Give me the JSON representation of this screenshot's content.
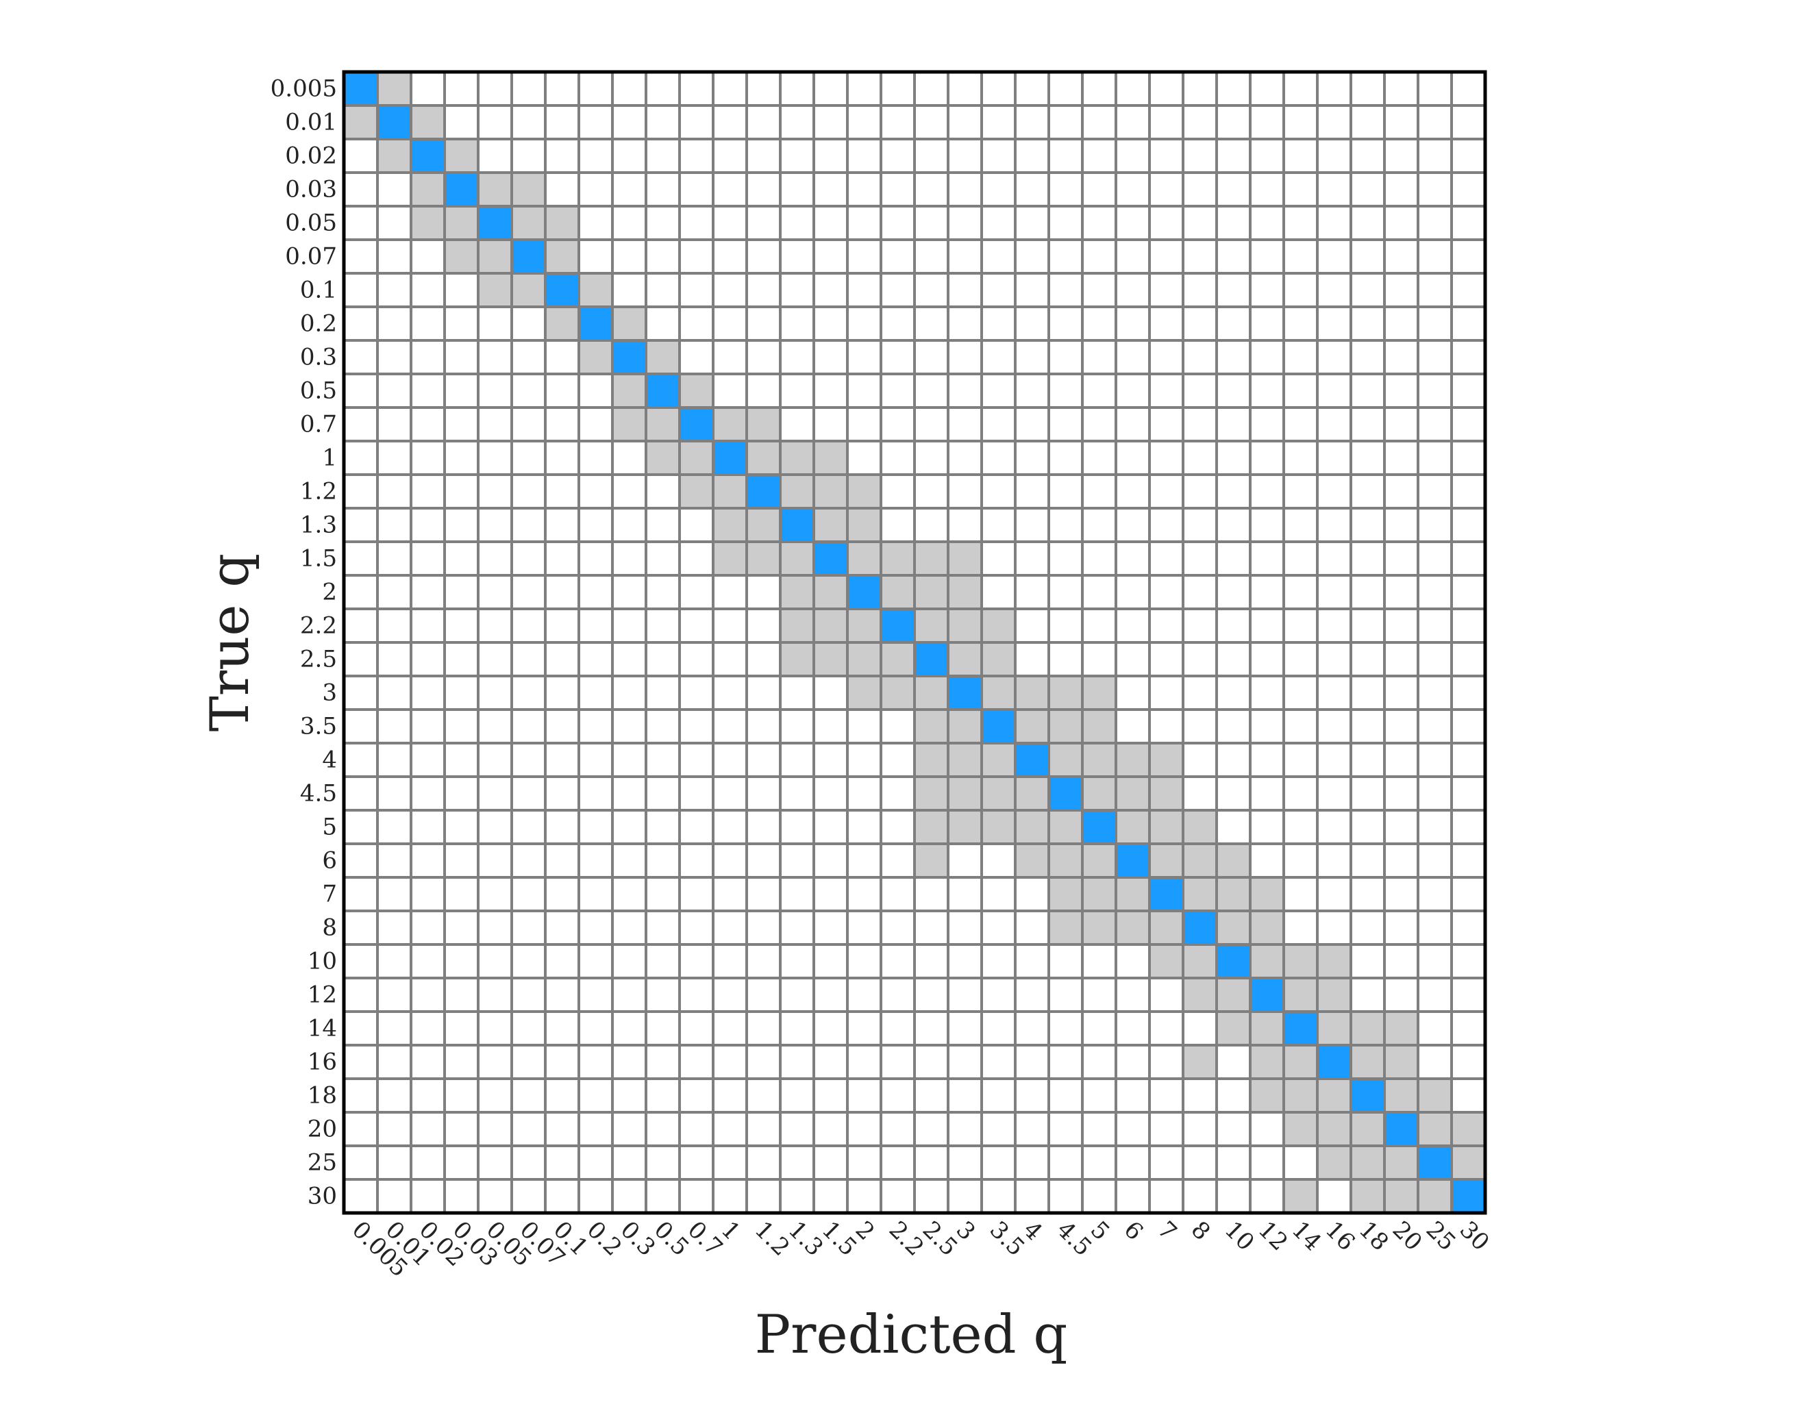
{
  "chart_data": {
    "type": "matrix",
    "xlabel": "Predicted q",
    "ylabel": "True q",
    "categories": [
      "0.005",
      "0.01",
      "0.02",
      "0.03",
      "0.05",
      "0.07",
      "0.1",
      "0.2",
      "0.3",
      "0.5",
      "0.7",
      "1",
      "1.2",
      "1.3",
      "1.5",
      "2",
      "2.2",
      "2.5",
      "3",
      "3.5",
      "4",
      "4.5",
      "5",
      "6",
      "7",
      "8",
      "10",
      "12",
      "14",
      "16",
      "18",
      "20",
      "25",
      "30"
    ],
    "colors": [
      "#ffffff",
      "#cccccc",
      "#1a9bff"
    ],
    "values": [
      [
        2,
        1,
        0,
        0,
        0,
        0,
        0,
        0,
        0,
        0,
        0,
        0,
        0,
        0,
        0,
        0,
        0,
        0,
        0,
        0,
        0,
        0,
        0,
        0,
        0,
        0,
        0,
        0,
        0,
        0,
        0,
        0,
        0,
        0
      ],
      [
        1,
        2,
        1,
        0,
        0,
        0,
        0,
        0,
        0,
        0,
        0,
        0,
        0,
        0,
        0,
        0,
        0,
        0,
        0,
        0,
        0,
        0,
        0,
        0,
        0,
        0,
        0,
        0,
        0,
        0,
        0,
        0,
        0,
        0
      ],
      [
        0,
        1,
        2,
        1,
        0,
        0,
        0,
        0,
        0,
        0,
        0,
        0,
        0,
        0,
        0,
        0,
        0,
        0,
        0,
        0,
        0,
        0,
        0,
        0,
        0,
        0,
        0,
        0,
        0,
        0,
        0,
        0,
        0,
        0
      ],
      [
        0,
        0,
        1,
        2,
        1,
        1,
        0,
        0,
        0,
        0,
        0,
        0,
        0,
        0,
        0,
        0,
        0,
        0,
        0,
        0,
        0,
        0,
        0,
        0,
        0,
        0,
        0,
        0,
        0,
        0,
        0,
        0,
        0,
        0
      ],
      [
        0,
        0,
        1,
        1,
        2,
        1,
        1,
        0,
        0,
        0,
        0,
        0,
        0,
        0,
        0,
        0,
        0,
        0,
        0,
        0,
        0,
        0,
        0,
        0,
        0,
        0,
        0,
        0,
        0,
        0,
        0,
        0,
        0,
        0
      ],
      [
        0,
        0,
        0,
        1,
        1,
        2,
        1,
        0,
        0,
        0,
        0,
        0,
        0,
        0,
        0,
        0,
        0,
        0,
        0,
        0,
        0,
        0,
        0,
        0,
        0,
        0,
        0,
        0,
        0,
        0,
        0,
        0,
        0,
        0
      ],
      [
        0,
        0,
        0,
        0,
        1,
        1,
        2,
        1,
        0,
        0,
        0,
        0,
        0,
        0,
        0,
        0,
        0,
        0,
        0,
        0,
        0,
        0,
        0,
        0,
        0,
        0,
        0,
        0,
        0,
        0,
        0,
        0,
        0,
        0
      ],
      [
        0,
        0,
        0,
        0,
        0,
        0,
        1,
        2,
        1,
        0,
        0,
        0,
        0,
        0,
        0,
        0,
        0,
        0,
        0,
        0,
        0,
        0,
        0,
        0,
        0,
        0,
        0,
        0,
        0,
        0,
        0,
        0,
        0,
        0
      ],
      [
        0,
        0,
        0,
        0,
        0,
        0,
        0,
        1,
        2,
        1,
        0,
        0,
        0,
        0,
        0,
        0,
        0,
        0,
        0,
        0,
        0,
        0,
        0,
        0,
        0,
        0,
        0,
        0,
        0,
        0,
        0,
        0,
        0,
        0
      ],
      [
        0,
        0,
        0,
        0,
        0,
        0,
        0,
        0,
        1,
        2,
        1,
        0,
        0,
        0,
        0,
        0,
        0,
        0,
        0,
        0,
        0,
        0,
        0,
        0,
        0,
        0,
        0,
        0,
        0,
        0,
        0,
        0,
        0,
        0
      ],
      [
        0,
        0,
        0,
        0,
        0,
        0,
        0,
        0,
        1,
        1,
        2,
        1,
        1,
        0,
        0,
        0,
        0,
        0,
        0,
        0,
        0,
        0,
        0,
        0,
        0,
        0,
        0,
        0,
        0,
        0,
        0,
        0,
        0,
        0
      ],
      [
        0,
        0,
        0,
        0,
        0,
        0,
        0,
        0,
        0,
        1,
        1,
        2,
        1,
        1,
        1,
        0,
        0,
        0,
        0,
        0,
        0,
        0,
        0,
        0,
        0,
        0,
        0,
        0,
        0,
        0,
        0,
        0,
        0,
        0
      ],
      [
        0,
        0,
        0,
        0,
        0,
        0,
        0,
        0,
        0,
        0,
        1,
        1,
        2,
        1,
        1,
        1,
        0,
        0,
        0,
        0,
        0,
        0,
        0,
        0,
        0,
        0,
        0,
        0,
        0,
        0,
        0,
        0,
        0,
        0
      ],
      [
        0,
        0,
        0,
        0,
        0,
        0,
        0,
        0,
        0,
        0,
        0,
        1,
        1,
        2,
        1,
        1,
        0,
        0,
        0,
        0,
        0,
        0,
        0,
        0,
        0,
        0,
        0,
        0,
        0,
        0,
        0,
        0,
        0,
        0
      ],
      [
        0,
        0,
        0,
        0,
        0,
        0,
        0,
        0,
        0,
        0,
        0,
        1,
        1,
        1,
        2,
        1,
        1,
        1,
        1,
        0,
        0,
        0,
        0,
        0,
        0,
        0,
        0,
        0,
        0,
        0,
        0,
        0,
        0,
        0
      ],
      [
        0,
        0,
        0,
        0,
        0,
        0,
        0,
        0,
        0,
        0,
        0,
        0,
        0,
        1,
        1,
        2,
        1,
        1,
        1,
        0,
        0,
        0,
        0,
        0,
        0,
        0,
        0,
        0,
        0,
        0,
        0,
        0,
        0,
        0
      ],
      [
        0,
        0,
        0,
        0,
        0,
        0,
        0,
        0,
        0,
        0,
        0,
        0,
        0,
        1,
        1,
        1,
        2,
        1,
        1,
        1,
        0,
        0,
        0,
        0,
        0,
        0,
        0,
        0,
        0,
        0,
        0,
        0,
        0,
        0
      ],
      [
        0,
        0,
        0,
        0,
        0,
        0,
        0,
        0,
        0,
        0,
        0,
        0,
        0,
        1,
        1,
        1,
        1,
        2,
        1,
        1,
        0,
        0,
        0,
        0,
        0,
        0,
        0,
        0,
        0,
        0,
        0,
        0,
        0,
        0
      ],
      [
        0,
        0,
        0,
        0,
        0,
        0,
        0,
        0,
        0,
        0,
        0,
        0,
        0,
        0,
        0,
        1,
        1,
        1,
        2,
        1,
        1,
        1,
        1,
        0,
        0,
        0,
        0,
        0,
        0,
        0,
        0,
        0,
        0,
        0
      ],
      [
        0,
        0,
        0,
        0,
        0,
        0,
        0,
        0,
        0,
        0,
        0,
        0,
        0,
        0,
        0,
        0,
        0,
        1,
        1,
        2,
        1,
        1,
        1,
        0,
        0,
        0,
        0,
        0,
        0,
        0,
        0,
        0,
        0,
        0
      ],
      [
        0,
        0,
        0,
        0,
        0,
        0,
        0,
        0,
        0,
        0,
        0,
        0,
        0,
        0,
        0,
        0,
        0,
        1,
        1,
        1,
        2,
        1,
        1,
        1,
        1,
        0,
        0,
        0,
        0,
        0,
        0,
        0,
        0,
        0
      ],
      [
        0,
        0,
        0,
        0,
        0,
        0,
        0,
        0,
        0,
        0,
        0,
        0,
        0,
        0,
        0,
        0,
        0,
        1,
        1,
        1,
        1,
        2,
        1,
        1,
        1,
        0,
        0,
        0,
        0,
        0,
        0,
        0,
        0,
        0
      ],
      [
        0,
        0,
        0,
        0,
        0,
        0,
        0,
        0,
        0,
        0,
        0,
        0,
        0,
        0,
        0,
        0,
        0,
        1,
        1,
        1,
        1,
        1,
        2,
        1,
        1,
        1,
        0,
        0,
        0,
        0,
        0,
        0,
        0,
        0
      ],
      [
        0,
        0,
        0,
        0,
        0,
        0,
        0,
        0,
        0,
        0,
        0,
        0,
        0,
        0,
        0,
        0,
        0,
        1,
        0,
        0,
        1,
        1,
        1,
        2,
        1,
        1,
        1,
        0,
        0,
        0,
        0,
        0,
        0,
        0
      ],
      [
        0,
        0,
        0,
        0,
        0,
        0,
        0,
        0,
        0,
        0,
        0,
        0,
        0,
        0,
        0,
        0,
        0,
        0,
        0,
        0,
        0,
        1,
        1,
        1,
        2,
        1,
        1,
        1,
        0,
        0,
        0,
        0,
        0,
        0
      ],
      [
        0,
        0,
        0,
        0,
        0,
        0,
        0,
        0,
        0,
        0,
        0,
        0,
        0,
        0,
        0,
        0,
        0,
        0,
        0,
        0,
        0,
        1,
        1,
        1,
        1,
        2,
        1,
        1,
        0,
        0,
        0,
        0,
        0,
        0
      ],
      [
        0,
        0,
        0,
        0,
        0,
        0,
        0,
        0,
        0,
        0,
        0,
        0,
        0,
        0,
        0,
        0,
        0,
        0,
        0,
        0,
        0,
        0,
        0,
        0,
        1,
        1,
        2,
        1,
        1,
        1,
        0,
        0,
        0,
        0
      ],
      [
        0,
        0,
        0,
        0,
        0,
        0,
        0,
        0,
        0,
        0,
        0,
        0,
        0,
        0,
        0,
        0,
        0,
        0,
        0,
        0,
        0,
        0,
        0,
        0,
        0,
        1,
        1,
        2,
        1,
        1,
        0,
        0,
        0,
        0
      ],
      [
        0,
        0,
        0,
        0,
        0,
        0,
        0,
        0,
        0,
        0,
        0,
        0,
        0,
        0,
        0,
        0,
        0,
        0,
        0,
        0,
        0,
        0,
        0,
        0,
        0,
        0,
        1,
        1,
        2,
        1,
        1,
        1,
        0,
        0
      ],
      [
        0,
        0,
        0,
        0,
        0,
        0,
        0,
        0,
        0,
        0,
        0,
        0,
        0,
        0,
        0,
        0,
        0,
        0,
        0,
        0,
        0,
        0,
        0,
        0,
        0,
        1,
        0,
        1,
        1,
        2,
        1,
        1,
        0,
        0
      ],
      [
        0,
        0,
        0,
        0,
        0,
        0,
        0,
        0,
        0,
        0,
        0,
        0,
        0,
        0,
        0,
        0,
        0,
        0,
        0,
        0,
        0,
        0,
        0,
        0,
        0,
        0,
        0,
        1,
        1,
        1,
        2,
        1,
        1,
        0
      ],
      [
        0,
        0,
        0,
        0,
        0,
        0,
        0,
        0,
        0,
        0,
        0,
        0,
        0,
        0,
        0,
        0,
        0,
        0,
        0,
        0,
        0,
        0,
        0,
        0,
        0,
        0,
        0,
        0,
        1,
        1,
        1,
        2,
        1,
        1
      ],
      [
        0,
        0,
        0,
        0,
        0,
        0,
        0,
        0,
        0,
        0,
        0,
        0,
        0,
        0,
        0,
        0,
        0,
        0,
        0,
        0,
        0,
        0,
        0,
        0,
        0,
        0,
        0,
        0,
        0,
        1,
        1,
        1,
        2,
        1
      ],
      [
        0,
        0,
        0,
        0,
        0,
        0,
        0,
        0,
        0,
        0,
        0,
        0,
        0,
        0,
        0,
        0,
        0,
        0,
        0,
        0,
        0,
        0,
        0,
        0,
        0,
        0,
        0,
        0,
        1,
        0,
        1,
        1,
        1,
        2
      ]
    ]
  }
}
